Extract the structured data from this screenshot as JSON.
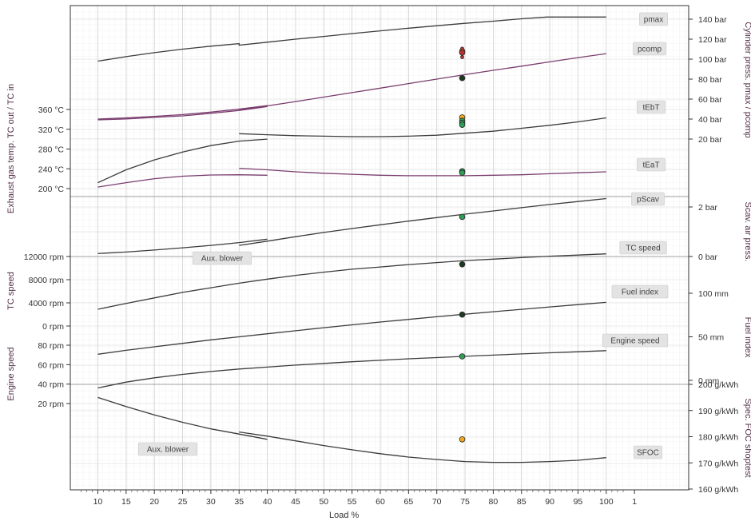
{
  "chart_data": {
    "type": "line",
    "xlabel": "Load %",
    "x_ticks": [
      "10",
      "15",
      "20",
      "25",
      "30",
      "35",
      "40",
      "45",
      "50",
      "55",
      "60",
      "65",
      "70",
      "75",
      "80",
      "85",
      "90",
      "95",
      "100",
      "1"
    ],
    "xlim": [
      6,
      104
    ],
    "grid": true,
    "colors": {
      "black_curve": "#3c3c3c",
      "purple_curve": "#7a3d6e",
      "marker_green": "#2e9e55",
      "marker_orange": "#f2a81d",
      "marker_red": "#b8312f",
      "marker_dark": "#1a3a22"
    },
    "left_axes": [
      {
        "title": "Exhaust gas temp. TC out / TC in",
        "ticks": [
          "360 °C",
          "320 °C",
          "280 °C",
          "240 °C",
          "200 °C"
        ],
        "values": [
          360,
          320,
          280,
          240,
          200
        ]
      },
      {
        "title": "TC speed",
        "ticks": [
          "12000 rpm",
          "8000 rpm",
          "4000 rpm",
          "0 rpm"
        ],
        "values": [
          12000,
          8000,
          4000,
          0
        ]
      },
      {
        "title": "Engine speed",
        "ticks": [
          "80 rpm",
          "60 rpm",
          "40 rpm",
          "20 rpm"
        ],
        "values": [
          80,
          60,
          40,
          20
        ]
      }
    ],
    "right_axes": [
      {
        "title": "Cylinder press. pmax / pcomp",
        "ticks": [
          "140 bar",
          "120 bar",
          "100 bar",
          "80 bar",
          "60 bar",
          "40 bar",
          "20 bar"
        ],
        "values": [
          140,
          120,
          100,
          80,
          60,
          40,
          20
        ]
      },
      {
        "title": "Scav. air press.",
        "ticks": [
          "2 bar",
          "0 bar"
        ],
        "values": [
          2,
          0
        ]
      },
      {
        "title": "Fuel index",
        "ticks": [
          "100 mm",
          "50 mm",
          "0 mm"
        ],
        "values": [
          100,
          50,
          0
        ]
      },
      {
        "title": "Spec. FOC shoptest",
        "ticks": [
          "200 g/kWh",
          "190 g/kWh",
          "180 g/kWh",
          "170 g/kWh",
          "160 g/kWh"
        ],
        "values": [
          200,
          190,
          180,
          170,
          160
        ]
      }
    ],
    "series": [
      {
        "name": "pmax",
        "unit": "bar",
        "points": [
          [
            10,
            98
          ],
          [
            15,
            102.5
          ],
          [
            20,
            106.5
          ],
          [
            25,
            110
          ],
          [
            30,
            113
          ],
          [
            35,
            115.5
          ],
          [
            35,
            114
          ],
          [
            40,
            117
          ],
          [
            45,
            120
          ],
          [
            50,
            122.7
          ],
          [
            55,
            125.6
          ],
          [
            60,
            128.3
          ],
          [
            65,
            131
          ],
          [
            70,
            133.4
          ],
          [
            75,
            135.8
          ],
          [
            80,
            138
          ],
          [
            85,
            140.4
          ],
          [
            89.5,
            142.2
          ],
          [
            100,
            142.2
          ]
        ]
      },
      {
        "name": "pcomp",
        "unit": "bar",
        "points": [
          [
            10,
            40
          ],
          [
            15,
            41.2
          ],
          [
            20,
            42.7
          ],
          [
            25,
            44.5
          ],
          [
            30,
            47
          ],
          [
            35,
            50
          ],
          [
            40,
            53.5
          ],
          [
            35,
            49
          ],
          [
            40,
            53.2
          ],
          [
            45,
            57.5
          ],
          [
            50,
            62
          ],
          [
            55,
            66.5
          ],
          [
            60,
            71
          ],
          [
            65,
            75.5
          ],
          [
            70,
            80
          ],
          [
            75,
            84.5
          ],
          [
            80,
            88.8
          ],
          [
            85,
            93
          ],
          [
            90,
            97.3
          ],
          [
            95,
            101.5
          ],
          [
            100,
            105.5
          ]
        ]
      },
      {
        "name": "tEbT",
        "unit": "°C",
        "points": [
          [
            10,
            339
          ],
          [
            15,
            341
          ],
          [
            20,
            344
          ],
          [
            25,
            347
          ],
          [
            30,
            352
          ],
          [
            35,
            358
          ],
          [
            40,
            366
          ],
          [
            35,
            311
          ],
          [
            40,
            309
          ],
          [
            45,
            307
          ],
          [
            50,
            306
          ],
          [
            55,
            305
          ],
          [
            60,
            305
          ],
          [
            65,
            306
          ],
          [
            70,
            308
          ],
          [
            75,
            312
          ],
          [
            80,
            316
          ],
          [
            85,
            322
          ],
          [
            90,
            328
          ],
          [
            95,
            335
          ],
          [
            100,
            343
          ]
        ]
      },
      {
        "name": "tEaT",
        "unit": "°C",
        "points": [
          [
            10,
            212
          ],
          [
            15,
            238
          ],
          [
            20,
            258
          ],
          [
            25,
            274
          ],
          [
            30,
            287
          ],
          [
            35,
            296
          ],
          [
            40,
            300
          ],
          [
            35,
            241
          ],
          [
            40,
            238
          ],
          [
            45,
            234
          ],
          [
            50,
            231
          ],
          [
            55,
            229
          ],
          [
            60,
            227
          ],
          [
            65,
            226
          ],
          [
            70,
            226
          ],
          [
            75,
            226
          ],
          [
            80,
            227
          ],
          [
            85,
            228
          ],
          [
            90,
            230
          ],
          [
            95,
            232
          ],
          [
            100,
            234
          ]
        ]
      },
      {
        "name": "tEaT (second curve)",
        "unit": "°C",
        "points": [
          [
            10,
            203
          ],
          [
            15,
            212
          ],
          [
            20,
            220
          ],
          [
            25,
            225
          ],
          [
            30,
            227.5
          ],
          [
            35,
            228
          ],
          [
            40,
            227
          ]
        ]
      },
      {
        "name": "pScav.",
        "unit": "bar",
        "points": [
          [
            10,
            0.12
          ],
          [
            15,
            0.18
          ],
          [
            20,
            0.26
          ],
          [
            25,
            0.35
          ],
          [
            30,
            0.45
          ],
          [
            35,
            0.56
          ],
          [
            40,
            0.7
          ],
          [
            35,
            0.45
          ],
          [
            40,
            0.62
          ],
          [
            45,
            0.8
          ],
          [
            50,
            0.97
          ],
          [
            55,
            1.13
          ],
          [
            60,
            1.28
          ],
          [
            65,
            1.43
          ],
          [
            70,
            1.57
          ],
          [
            75,
            1.71
          ],
          [
            80,
            1.84
          ],
          [
            85,
            1.97
          ],
          [
            90,
            2.1
          ],
          [
            95,
            2.22
          ],
          [
            100,
            2.34
          ]
        ]
      },
      {
        "name": "TC speed",
        "unit": "rpm",
        "points": [
          [
            10,
            2900
          ],
          [
            15,
            3900
          ],
          [
            20,
            4850
          ],
          [
            25,
            5800
          ],
          [
            30,
            6600
          ],
          [
            35,
            7400
          ],
          [
            40,
            8100
          ],
          [
            45,
            8750
          ],
          [
            50,
            9300
          ],
          [
            55,
            9800
          ],
          [
            60,
            10200
          ],
          [
            65,
            10600
          ],
          [
            70,
            10950
          ],
          [
            75,
            11300
          ],
          [
            80,
            11550
          ],
          [
            85,
            11800
          ],
          [
            90,
            12050
          ],
          [
            95,
            12250
          ],
          [
            100,
            12450
          ]
        ]
      },
      {
        "name": "Fuel index",
        "unit": "mm",
        "points": [
          [
            10,
            30
          ],
          [
            15,
            34.5
          ],
          [
            20,
            38.5
          ],
          [
            25,
            42.5
          ],
          [
            30,
            46.5
          ],
          [
            35,
            50
          ],
          [
            40,
            53.5
          ],
          [
            45,
            57
          ],
          [
            50,
            60.5
          ],
          [
            55,
            63.8
          ],
          [
            60,
            67
          ],
          [
            65,
            70
          ],
          [
            70,
            73
          ],
          [
            75,
            76
          ],
          [
            80,
            78.8
          ],
          [
            85,
            81.6
          ],
          [
            90,
            84.3
          ],
          [
            95,
            87
          ],
          [
            100,
            89.5
          ]
        ]
      },
      {
        "name": "Engine speed",
        "unit": "rpm",
        "points": [
          [
            10,
            36
          ],
          [
            15,
            42
          ],
          [
            20,
            46.5
          ],
          [
            25,
            50
          ],
          [
            30,
            53
          ],
          [
            35,
            55.5
          ],
          [
            40,
            57.5
          ],
          [
            45,
            59.5
          ],
          [
            50,
            61.3
          ],
          [
            55,
            63
          ],
          [
            60,
            64.5
          ],
          [
            65,
            66
          ],
          [
            70,
            67.3
          ],
          [
            75,
            68.6
          ],
          [
            80,
            69.8
          ],
          [
            85,
            71
          ],
          [
            90,
            72.2
          ],
          [
            95,
            73.3
          ],
          [
            100,
            74.4
          ]
        ]
      },
      {
        "name": "SFOC",
        "unit": "g/kWh",
        "points": [
          [
            10,
            195
          ],
          [
            15,
            191.5
          ],
          [
            20,
            188.3
          ],
          [
            25,
            185.5
          ],
          [
            30,
            183
          ],
          [
            35,
            181
          ],
          [
            40,
            179
          ],
          [
            35,
            181.8
          ],
          [
            40,
            180.2
          ],
          [
            45,
            178.4
          ],
          [
            50,
            176.6
          ],
          [
            55,
            175
          ],
          [
            60,
            173.5
          ],
          [
            65,
            172.2
          ],
          [
            70,
            171.3
          ],
          [
            75,
            170.5
          ],
          [
            80,
            170.2
          ],
          [
            85,
            170.2
          ],
          [
            90,
            170.5
          ],
          [
            95,
            171
          ],
          [
            100,
            172
          ]
        ]
      }
    ],
    "measurements": [
      {
        "series": "pmax",
        "x": 74.5,
        "values": [
          108,
          106.5,
          110.5,
          102
        ],
        "colors": [
          "orange",
          "red",
          "red",
          "red"
        ]
      },
      {
        "series": "pcomp",
        "x": 74.5,
        "values": [
          81
        ],
        "colors": [
          "dark"
        ]
      },
      {
        "series": "tEbT",
        "x": 74.5,
        "values": [
          344,
          337,
          333,
          329
        ],
        "colors": [
          "orange",
          "green",
          "green",
          "green"
        ]
      },
      {
        "series": "tEaT",
        "x": 74.5,
        "values": [
          235,
          232
        ],
        "colors": [
          "green",
          "green"
        ]
      },
      {
        "series": "pScav.",
        "x": 74.5,
        "values": [
          1.6
        ],
        "colors": [
          "green"
        ]
      },
      {
        "series": "TC speed",
        "x": 74.5,
        "values": [
          10650
        ],
        "colors": [
          "dark"
        ]
      },
      {
        "series": "Fuel index",
        "x": 74.5,
        "values": [
          75.5
        ],
        "colors": [
          "dark"
        ]
      },
      {
        "series": "Engine speed",
        "x": 74.5,
        "values": [
          68.5
        ],
        "colors": [
          "green"
        ]
      },
      {
        "series": "SFOC",
        "x": 74.5,
        "values": [
          179
        ],
        "colors": [
          "orange"
        ]
      }
    ],
    "curve_labels": [
      "pmax",
      "pcomp",
      "tEbT",
      "tEaT",
      "pScav",
      "TC speed",
      "Fuel index",
      "Engine speed",
      "SFOC"
    ],
    "annotations": [
      "Aux. blower",
      "Aux. blower"
    ]
  }
}
